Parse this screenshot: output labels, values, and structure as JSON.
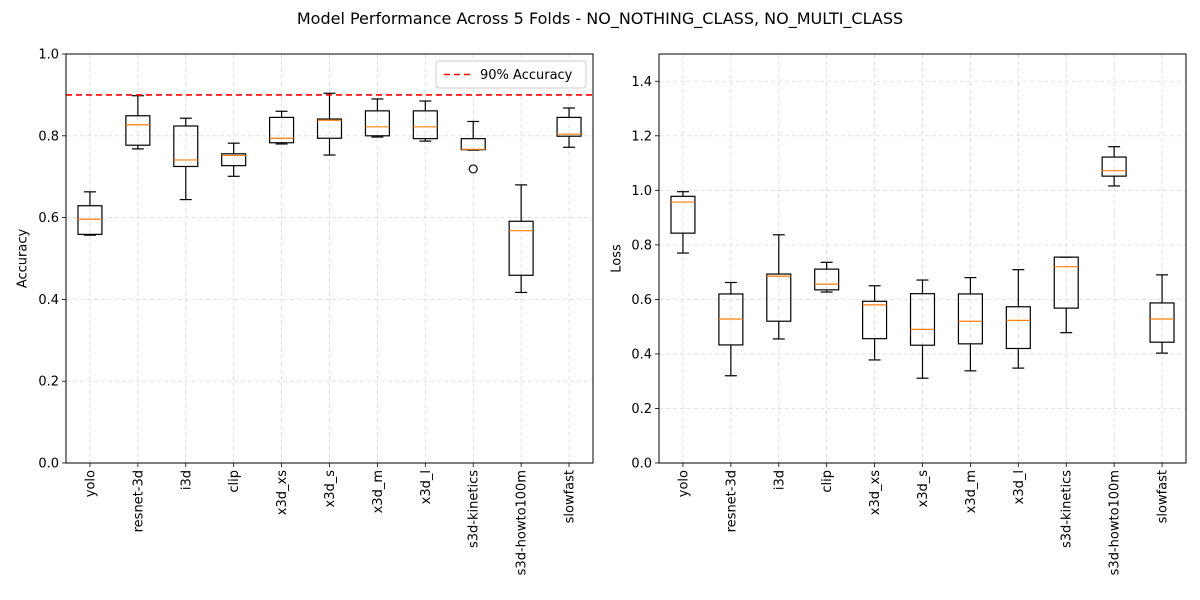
{
  "figure": {
    "title": "Model Performance Across 5 Folds - NO_NOTHING_CLASS, NO_MULTI_CLASS"
  },
  "chart_data": [
    {
      "type": "box",
      "categories": [
        "yolo",
        "resnet-3d",
        "i3d",
        "clip",
        "x3d_xs",
        "x3d_s",
        "x3d_m",
        "x3d_l",
        "s3d-kinetics",
        "s3d-howto100m",
        "slowfast"
      ],
      "boxes": [
        {
          "whislo": 0.557,
          "q1": 0.559,
          "med": 0.596,
          "q3": 0.629,
          "whishi": 0.663,
          "fliers": []
        },
        {
          "whislo": 0.768,
          "q1": 0.777,
          "med": 0.827,
          "q3": 0.849,
          "whishi": 0.898,
          "fliers": []
        },
        {
          "whislo": 0.644,
          "q1": 0.725,
          "med": 0.741,
          "q3": 0.824,
          "whishi": 0.843,
          "fliers": []
        },
        {
          "whislo": 0.701,
          "q1": 0.727,
          "med": 0.752,
          "q3": 0.756,
          "whishi": 0.782,
          "fliers": []
        },
        {
          "whislo": 0.78,
          "q1": 0.783,
          "med": 0.794,
          "q3": 0.845,
          "whishi": 0.86,
          "fliers": []
        },
        {
          "whislo": 0.753,
          "q1": 0.794,
          "med": 0.838,
          "q3": 0.841,
          "whishi": 0.904,
          "fliers": []
        },
        {
          "whislo": 0.797,
          "q1": 0.8,
          "med": 0.822,
          "q3": 0.861,
          "whishi": 0.89,
          "fliers": []
        },
        {
          "whislo": 0.787,
          "q1": 0.793,
          "med": 0.822,
          "q3": 0.861,
          "whishi": 0.885,
          "fliers": []
        },
        {
          "whislo": 0.765,
          "q1": 0.766,
          "med": 0.767,
          "q3": 0.793,
          "whishi": 0.835,
          "fliers": [
            0.719
          ]
        },
        {
          "whislo": 0.417,
          "q1": 0.459,
          "med": 0.568,
          "q3": 0.591,
          "whishi": 0.68,
          "fliers": []
        },
        {
          "whislo": 0.772,
          "q1": 0.799,
          "med": 0.804,
          "q3": 0.845,
          "whishi": 0.868,
          "fliers": []
        }
      ],
      "title": "",
      "xlabel": "",
      "ylabel": "Accuracy",
      "ylim": [
        0.0,
        1.0
      ],
      "yticks": [
        "0.0",
        "0.2",
        "0.4",
        "0.6",
        "0.8",
        "1.0"
      ],
      "reference_line": {
        "y": 0.9,
        "label": "90% Accuracy",
        "color": "#ff0000",
        "style": "dashed"
      },
      "legend": {
        "placement": "top-right",
        "entries": [
          "90% Accuracy"
        ]
      },
      "grid": true,
      "colors": {
        "box": "#000000",
        "median": "#ff7f0e",
        "grid": "#d9d9d9"
      }
    },
    {
      "type": "box",
      "categories": [
        "yolo",
        "resnet-3d",
        "i3d",
        "clip",
        "x3d_xs",
        "x3d_s",
        "x3d_m",
        "x3d_l",
        "s3d-kinetics",
        "s3d-howto100m",
        "slowfast"
      ],
      "boxes": [
        {
          "whislo": 0.77,
          "q1": 0.843,
          "med": 0.957,
          "q3": 0.978,
          "whishi": 0.995,
          "fliers": []
        },
        {
          "whislo": 0.32,
          "q1": 0.433,
          "med": 0.528,
          "q3": 0.62,
          "whishi": 0.662,
          "fliers": []
        },
        {
          "whislo": 0.455,
          "q1": 0.52,
          "med": 0.685,
          "q3": 0.693,
          "whishi": 0.837,
          "fliers": []
        },
        {
          "whislo": 0.627,
          "q1": 0.635,
          "med": 0.656,
          "q3": 0.711,
          "whishi": 0.736,
          "fliers": []
        },
        {
          "whislo": 0.378,
          "q1": 0.456,
          "med": 0.58,
          "q3": 0.593,
          "whishi": 0.65,
          "fliers": []
        },
        {
          "whislo": 0.311,
          "q1": 0.432,
          "med": 0.49,
          "q3": 0.621,
          "whishi": 0.671,
          "fliers": []
        },
        {
          "whislo": 0.338,
          "q1": 0.437,
          "med": 0.52,
          "q3": 0.62,
          "whishi": 0.68,
          "fliers": []
        },
        {
          "whislo": 0.348,
          "q1": 0.42,
          "med": 0.523,
          "q3": 0.573,
          "whishi": 0.709,
          "fliers": []
        },
        {
          "whislo": 0.478,
          "q1": 0.568,
          "med": 0.72,
          "q3": 0.755,
          "whishi": 0.755,
          "fliers": []
        },
        {
          "whislo": 1.016,
          "q1": 1.052,
          "med": 1.072,
          "q3": 1.122,
          "whishi": 1.16,
          "fliers": []
        },
        {
          "whislo": 0.403,
          "q1": 0.443,
          "med": 0.528,
          "q3": 0.587,
          "whishi": 0.69,
          "fliers": []
        }
      ],
      "title": "",
      "xlabel": "",
      "ylabel": "Loss",
      "ylim": [
        0.0,
        1.5
      ],
      "yticks": [
        "0.0",
        "0.2",
        "0.4",
        "0.6",
        "0.8",
        "1.0",
        "1.2",
        "1.4"
      ],
      "grid": true,
      "colors": {
        "box": "#000000",
        "median": "#ff7f0e",
        "grid": "#d9d9d9"
      }
    }
  ]
}
